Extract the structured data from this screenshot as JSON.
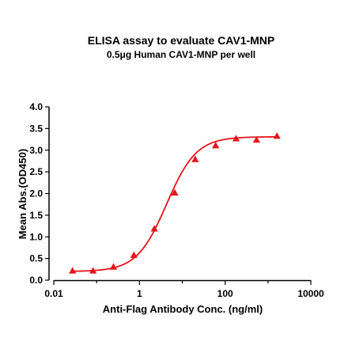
{
  "chart_data": {
    "type": "scatter",
    "title": "ELISA assay to evaluate CAV1-MNP",
    "subtitle": "0.5μg Human CAV1-MNP per well",
    "xlabel": "Anti-Flag Antibody Conc. (ng/ml)",
    "ylabel": "Mean Abs.(OD450)",
    "x_scale": "log",
    "xlim": [
      0.01,
      10000
    ],
    "ylim": [
      0,
      4.0
    ],
    "x_ticks": [
      0.01,
      1,
      100,
      10000
    ],
    "x_tick_labels": [
      "0.01",
      "1",
      "100",
      "10000"
    ],
    "y_ticks": [
      0,
      0.5,
      1.0,
      1.5,
      2.0,
      2.5,
      3.0,
      3.5,
      4.0
    ],
    "y_tick_labels": [
      "0.0",
      "0.5",
      "1.0",
      "1.5",
      "2.0",
      "2.5",
      "3.0",
      "3.5",
      "4.0"
    ],
    "grid": false,
    "legend": "none",
    "series": [
      {
        "marker": "triangle",
        "color": "#e8141b",
        "x": [
          0.0274,
          0.0823,
          0.247,
          0.741,
          2.22,
          6.67,
          20,
          60,
          180,
          540,
          1620
        ],
        "y": [
          0.22,
          0.22,
          0.31,
          0.58,
          1.19,
          2.02,
          2.79,
          3.11,
          3.27,
          3.24,
          3.33
        ]
      }
    ],
    "fit_curve": {
      "model": "4PL",
      "color": "#e8141b",
      "bottom": 0.2,
      "top": 3.31,
      "ec50": 4.3,
      "hill": 1.25
    }
  }
}
